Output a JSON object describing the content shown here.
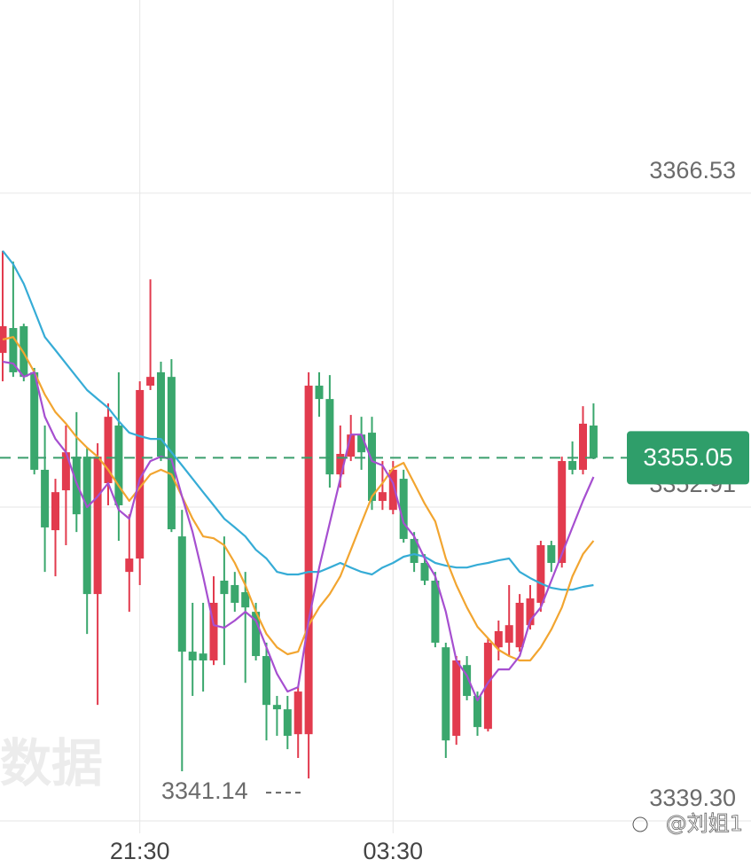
{
  "chart_data": {
    "type": "candlestick",
    "categories": [
      null,
      null,
      null,
      null,
      null,
      null,
      null,
      null,
      null,
      null,
      null,
      null,
      null,
      "21:30",
      null,
      null,
      null,
      null,
      null,
      null,
      null,
      null,
      null,
      null,
      null,
      null,
      null,
      null,
      null,
      null,
      null,
      null,
      null,
      null,
      null,
      null,
      null,
      "03:30",
      null,
      null,
      null,
      null,
      null,
      null,
      null,
      null,
      null,
      null,
      null,
      null,
      null,
      null,
      null,
      null,
      null,
      null,
      null
    ],
    "open": [
      3359.6,
      3360.68,
      3360.76,
      3358.76,
      3354.53,
      3351.91,
      3353.64,
      3355.1,
      3355.1,
      3349.14,
      3353.95,
      3356.45,
      3350.1,
      3350.68,
      3358.18,
      3358.76,
      3358.56,
      3351.64,
      3346.64,
      3346.56,
      3346.26,
      3349.72,
      3349.53,
      3349.22,
      3348.37,
      3346.45,
      3344.33,
      3344.14,
      3343.06,
      3343.06,
      3358.18,
      3357.6,
      3354.33,
      3355.1,
      3356.06,
      3356.14,
      3353.18,
      3352.79,
      3354.14,
      3351.53,
      3350.49,
      3349.72,
      3346.83,
      3342.99,
      3346.06,
      3344.72,
      3343.29,
      3346.83,
      3347.03,
      3346.83,
      3347.79,
      3348.76,
      3351.26,
      3350.49,
      3354.91,
      3354.53,
      3356.45
    ],
    "high": [
      3364.03,
      3363.56,
      3360.87,
      3358.95,
      3356.45,
      3354.14,
      3356.45,
      3357.03,
      3355.49,
      3355.68,
      3357.41,
      3358.76,
      3352.6,
      3358.37,
      3362.79,
      3359.22,
      3359.33,
      3352.79,
      3348.76,
      3348.76,
      3349.91,
      3351.64,
      3350.1,
      3350.1,
      3348.76,
      3347.03,
      3344.72,
      3344.72,
      3345.1,
      3358.76,
      3358.76,
      3358.64,
      3356.45,
      3356.91,
      3356.83,
      3356.83,
      3354.91,
      3354.91,
      3354.53,
      3351.83,
      3350.87,
      3350.1,
      3347.03,
      3346.45,
      3346.45,
      3344.91,
      3347.22,
      3347.99,
      3349.53,
      3349.14,
      3349.53,
      3351.45,
      3351.45,
      3355.1,
      3355.76,
      3357.29,
      3357.41
    ],
    "low": [
      3358.37,
      3358.56,
      3358.37,
      3354.33,
      3350.1,
      3349.91,
      3351.26,
      3351.83,
      3347.41,
      3344.33,
      3352.99,
      3351.45,
      3348.37,
      3349.53,
      3357.99,
      3354.91,
      3351.83,
      3341.45,
      3344.72,
      3344.91,
      3346.06,
      3346.06,
      3348.37,
      3345.29,
      3346.26,
      3342.79,
      3342.99,
      3342.41,
      3342.03,
      3341.14,
      3356.83,
      3353.76,
      3353.76,
      3354.91,
      3354.53,
      3352.79,
      3352.79,
      3352.6,
      3351.37,
      3350.1,
      3349.53,
      3346.83,
      3342.03,
      3342.6,
      3344.53,
      3342.99,
      3343.18,
      3346.26,
      3346.45,
      3346.64,
      3347.6,
      3348.37,
      3350.1,
      3350.29,
      3354.33,
      3354.33,
      3354.99
    ],
    "close": [
      3360.76,
      3358.76,
      3358.56,
      3354.53,
      3352.03,
      3353.56,
      3355.29,
      3352.6,
      3349.14,
      3355.1,
      3356.83,
      3352.99,
      3350.68,
      3357.99,
      3358.56,
      3355.1,
      3351.95,
      3346.64,
      3346.26,
      3346.26,
      3348.76,
      3349.14,
      3348.76,
      3348.56,
      3346.45,
      3344.33,
      3344.14,
      3342.99,
      3344.91,
      3358.18,
      3357.6,
      3354.33,
      3355.22,
      3356.06,
      3355.29,
      3353.18,
      3353.56,
      3354.53,
      3351.53,
      3350.49,
      3349.72,
      3347.03,
      3342.79,
      3346.26,
      3344.72,
      3343.37,
      3347.03,
      3347.53,
      3347.79,
      3348.76,
      3348.95,
      3351.26,
      3350.49,
      3354.91,
      3354.53,
      3356.53,
      3355.05
    ],
    "up_color": "#e23b4e",
    "down_color": "#3aa76d",
    "series": [
      {
        "color": "#36acd6",
        "values": [
          3364.03,
          3363.45,
          3362.6,
          3361.45,
          3360.29,
          3359.72,
          3359.14,
          3358.56,
          3357.99,
          3357.6,
          3357.22,
          3356.64,
          3356.14,
          3355.99,
          3355.87,
          3355.87,
          3355.29,
          3354.72,
          3354.14,
          3353.56,
          3352.99,
          3352.41,
          3352.03,
          3351.64,
          3351.06,
          3350.68,
          3350.1,
          3349.99,
          3349.99,
          3350.1,
          3350.1,
          3350.29,
          3350.49,
          3350.29,
          3350.1,
          3349.99,
          3350.29,
          3350.49,
          3350.76,
          3350.87,
          3350.76,
          3350.49,
          3350.37,
          3350.29,
          3350.29,
          3350.41,
          3350.49,
          3350.6,
          3350.68,
          3350.1,
          3349.83,
          3349.6,
          3349.41,
          3349.33,
          3349.33,
          3349.45,
          3349.53
        ]
      },
      {
        "color": "#f2a530",
        "values": [
          3360.18,
          3360.29,
          3359.6,
          3358.76,
          3357.79,
          3357.03,
          3356.53,
          3355.95,
          3355.49,
          3355.1,
          3354.53,
          3353.83,
          3353.18,
          3353.76,
          3354.33,
          3354.53,
          3354.33,
          3353.37,
          3352.41,
          3351.64,
          3351.56,
          3351.26,
          3350.49,
          3349.53,
          3348.37,
          3347.41,
          3346.83,
          3346.53,
          3346.64,
          3347.79,
          3348.56,
          3349.14,
          3349.91,
          3351.06,
          3352.22,
          3353.37,
          3353.95,
          3354.6,
          3354.83,
          3353.95,
          3353.06,
          3352.29,
          3350.68,
          3349.53,
          3348.56,
          3347.72,
          3347.22,
          3346.72,
          3346.45,
          3346.26,
          3346.26,
          3346.83,
          3347.6,
          3348.56,
          3349.91,
          3350.87,
          3351.45
        ]
      },
      {
        "color": "#a64fd0",
        "values": [
          3359.22,
          3359.14,
          3358.56,
          3358.76,
          3356.83,
          3355.87,
          3355.29,
          3353.95,
          3352.91,
          3353.37,
          3353.95,
          3352.79,
          3352.41,
          3354.14,
          3354.91,
          3355.1,
          3354.99,
          3353.37,
          3351.83,
          3349.91,
          3347.79,
          3347.68,
          3347.99,
          3348.37,
          3347.99,
          3346.83,
          3345.68,
          3344.91,
          3345.1,
          3347.99,
          3350.29,
          3352.22,
          3354.14,
          3356.06,
          3356.06,
          3354.91,
          3354.72,
          3353.95,
          3352.22,
          3351.64,
          3350.68,
          3349.91,
          3348.37,
          3346.26,
          3345.6,
          3344.53,
          3345.29,
          3345.87,
          3345.87,
          3346.45,
          3347.99,
          3348.56,
          3349.72,
          3350.87,
          3352.03,
          3353.18,
          3354.22
        ]
      }
    ],
    "ylim": [
      3338.76,
      3374.91
    ],
    "yticks": [
      3366.53,
      3352.91,
      {
        "value": 3339.3,
        "label": "3339.30"
      }
    ],
    "grid": true,
    "last_price": 3355.05,
    "low_mark": 3341.14,
    "watermark": "数据",
    "credit": "@刘姐1"
  }
}
